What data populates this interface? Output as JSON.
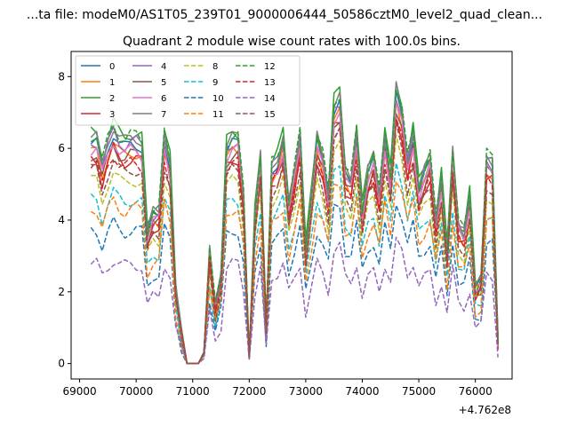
{
  "suptitle": "...ta file: modeM0/AS1T05_239T01_9000006444_50586cztM0_level2_quad_clean...",
  "chart_data": {
    "type": "line",
    "title": "Quadrant 2 module wise count rates with 100.0s bins.",
    "xlabel": "",
    "ylabel": "",
    "xlim": [
      68850,
      76650
    ],
    "ylim": [
      -0.43,
      8.7
    ],
    "x_offset_label": "+4.762e8",
    "xticks": [
      69000,
      70000,
      71000,
      72000,
      73000,
      74000,
      75000,
      76000
    ],
    "xtick_labels": [
      "69000",
      "70000",
      "71000",
      "72000",
      "73000",
      "74000",
      "75000",
      "76000"
    ],
    "yticks": [
      0,
      2,
      4,
      6,
      8
    ],
    "ytick_labels": [
      "0",
      "2",
      "4",
      "6",
      "8"
    ],
    "legend_position": "upper-left",
    "x": [
      69200,
      69300,
      69400,
      69500,
      69600,
      69700,
      69800,
      69900,
      70000,
      70100,
      70200,
      70300,
      70400,
      70500,
      70600,
      70700,
      70800,
      70900,
      71000,
      71100,
      71200,
      71300,
      71400,
      71500,
      71600,
      71700,
      71800,
      71900,
      72000,
      72100,
      72200,
      72300,
      72400,
      72500,
      72600,
      72700,
      72800,
      72900,
      73000,
      73100,
      73200,
      73300,
      73400,
      73500,
      73600,
      73700,
      73800,
      73900,
      74000,
      74100,
      74200,
      74300,
      74400,
      74500,
      74600,
      74700,
      74800,
      74900,
      75000,
      75100,
      75200,
      75300,
      75400,
      75500,
      75600,
      75700,
      75800,
      75900,
      76000,
      76100,
      76200,
      76300,
      76400
    ],
    "base": [
      6.0,
      6.0,
      5.3,
      5.9,
      6.3,
      6.0,
      5.9,
      6.0,
      6.0,
      5.9,
      3.5,
      4.0,
      4.0,
      6.1,
      5.4,
      2.0,
      0.8,
      0.0,
      0.0,
      0.0,
      0.3,
      3.0,
      1.5,
      2.3,
      5.8,
      6.0,
      6.0,
      4.5,
      0.2,
      4.0,
      5.5,
      1.0,
      5.3,
      5.5,
      6.0,
      4.2,
      5.1,
      6.1,
      3.1,
      4.5,
      6.0,
      5.5,
      4.5,
      6.9,
      7.1,
      5.1,
      4.9,
      6.2,
      4.1,
      5.1,
      5.5,
      4.5,
      6.1,
      5.0,
      7.3,
      6.7,
      5.4,
      6.2,
      4.7,
      5.1,
      5.5,
      3.8,
      5.0,
      3.0,
      5.6,
      3.7,
      3.5,
      4.5,
      2.0,
      2.2,
      5.5,
      5.4,
      0.6
    ],
    "series": [
      {
        "name": "0",
        "color": "#1f77b4",
        "dash": "solid",
        "scale": 1.02
      },
      {
        "name": "1",
        "color": "#ff7f0e",
        "dash": "solid",
        "scale": 0.98
      },
      {
        "name": "2",
        "color": "#2ca02c",
        "dash": "solid",
        "scale": 1.07
      },
      {
        "name": "3",
        "color": "#d62728",
        "dash": "solid",
        "scale": 0.95
      },
      {
        "name": "4",
        "color": "#9467bd",
        "dash": "solid",
        "scale": 1.03
      },
      {
        "name": "5",
        "color": "#8c564b",
        "dash": "solid",
        "scale": 0.97
      },
      {
        "name": "6",
        "color": "#e377c2",
        "dash": "solid",
        "scale": 0.99
      },
      {
        "name": "7",
        "color": "#7f7f7f",
        "dash": "solid",
        "scale": 1.05
      },
      {
        "name": "8",
        "color": "#bcbd22",
        "dash": "dashed",
        "scale": 0.85
      },
      {
        "name": "9",
        "color": "#17becf",
        "dash": "dashed",
        "scale": 0.76
      },
      {
        "name": "10",
        "color": "#1f77b4",
        "dash": "dashed",
        "scale": 0.62
      },
      {
        "name": "11",
        "color": "#ff7f0e",
        "dash": "dashed",
        "scale": 0.72
      },
      {
        "name": "12",
        "color": "#2ca02c",
        "dash": "dashed",
        "scale": 1.06
      },
      {
        "name": "13",
        "color": "#d62728",
        "dash": "dashed",
        "scale": 0.93
      },
      {
        "name": "14",
        "color": "#9467bd",
        "dash": "dashed",
        "scale": 0.46
      },
      {
        "name": "15",
        "color": "#8c564b",
        "dash": "dashed",
        "scale": 0.9
      }
    ]
  }
}
